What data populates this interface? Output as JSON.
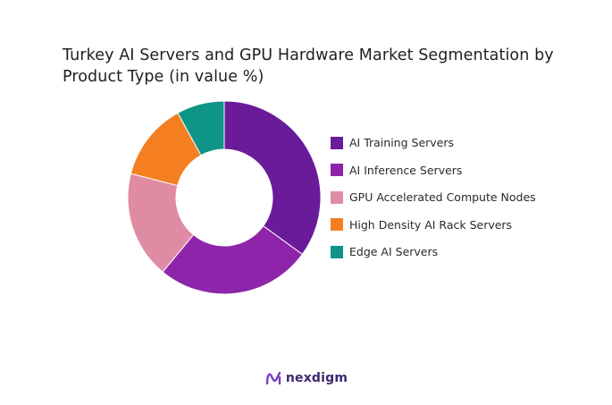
{
  "chart_data": {
    "type": "pie",
    "variant": "donut",
    "title": "Turkey AI Servers and GPU Hardware Market Segmentation by Product Type (in value %)",
    "title_lines": [
      "Turkey AI Servers and GPU Hardware Market Segmentation by",
      "Product Type (in value %)"
    ],
    "legend_position": "right",
    "slices": [
      {
        "label": "AI Training Servers",
        "value": 35,
        "color": "#6a1b9a"
      },
      {
        "label": "AI Inference Servers",
        "value": 26,
        "color": "#8e24aa"
      },
      {
        "label": "GPU Accelerated Compute Nodes",
        "value": 18,
        "color": "#e08ba4"
      },
      {
        "label": "High Density AI Rack Servers",
        "value": 13,
        "color": "#f57f20"
      },
      {
        "label": "Edge AI Servers",
        "value": 8,
        "color": "#0f9488"
      }
    ]
  },
  "brand": {
    "name": "nexdigm",
    "logo_icon": "nexdigm-logo-icon",
    "logo_color": "#7b3fc4"
  }
}
